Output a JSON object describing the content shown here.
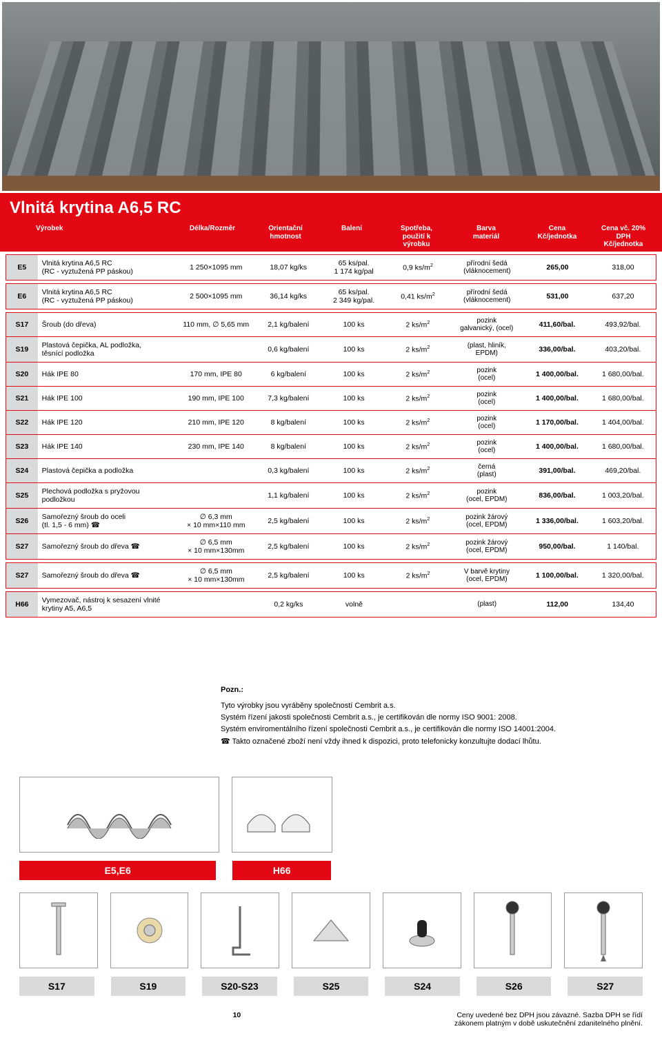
{
  "hero_alt": "Vlnitá vláknocementová krytina – šedé vlnovky",
  "title": "Vlnitá krytina A6,5 RC",
  "headers": {
    "c0": "",
    "c1": "Výrobek",
    "c2": "Délka/Rozměr",
    "c3": "Orientační\nhmotnost",
    "c4": "Balení",
    "c5": "Spotřeba,\npoužití k výrobku",
    "c6": "Barva\nmateriál",
    "c7": "Cena\nKč/jednotka",
    "c8": "Cena vč. 20% DPH\nKč/jednotka"
  },
  "block1": [
    {
      "code": "E5",
      "desc": "Vlnitá krytina A6,5 RC\n(RC - vyztužená PP páskou)",
      "dim": "1 250×1095 mm",
      "wt": "18,07 kg/ks",
      "pack": "65 ks/pal.\n1 174 kg/pal",
      "hm": "0,9 ks/m²",
      "mat": "přírodní šedá\n(vláknocement)",
      "p1": "265,00",
      "p2": "318,00"
    }
  ],
  "block2": [
    {
      "code": "E6",
      "desc": "Vlnitá krytina A6,5 RC\n(RC - vyztužená PP páskou)",
      "dim": "2 500×1095 mm",
      "wt": "36,14 kg/ks",
      "pack": "65 ks/pal.\n2 349 kg/pal.",
      "hm": "0,41 ks/m²",
      "mat": "přírodní šedá\n(vláknocement)",
      "p1": "531,00",
      "p2": "637,20"
    }
  ],
  "block3": [
    {
      "code": "S17",
      "desc": "Šroub (do dřeva)",
      "dim": "110 mm, ∅ 5,65 mm",
      "wt": "2,1 kg/balení",
      "pack": "100 ks",
      "hm": "2 ks/m²",
      "mat": "pozink\ngalvanický, (ocel)",
      "p1": "411,60/bal.",
      "p2": "493,92/bal."
    },
    {
      "code": "S19",
      "desc": "Plastová čepička, AL podložka,\ntěsnící podložka",
      "dim": "",
      "wt": "0,6 kg/balení",
      "pack": "100 ks",
      "hm": "2 ks/m²",
      "mat": "(plast, hliník,\nEPDM)",
      "p1": "336,00/bal.",
      "p2": "403,20/bal."
    },
    {
      "code": "S20",
      "desc": "Hák IPE 80",
      "dim": "170 mm, IPE 80",
      "wt": "6 kg/balení",
      "pack": "100 ks",
      "hm": "2 ks/m²",
      "mat": "pozink\n(ocel)",
      "p1": "1 400,00/bal.",
      "p2": "1 680,00/bal."
    },
    {
      "code": "S21",
      "desc": "Hák IPE 100",
      "dim": "190 mm, IPE 100",
      "wt": "7,3 kg/balení",
      "pack": "100 ks",
      "hm": "2 ks/m²",
      "mat": "pozink\n(ocel)",
      "p1": "1 400,00/bal.",
      "p2": "1 680,00/bal."
    },
    {
      "code": "S22",
      "desc": "Hák IPE 120",
      "dim": "210 mm, IPE 120",
      "wt": "8 kg/balení",
      "pack": "100 ks",
      "hm": "2 ks/m²",
      "mat": "pozink\n(ocel)",
      "p1": "1 170,00/bal.",
      "p2": "1 404,00/bal."
    },
    {
      "code": "S23",
      "desc": "Hák IPE 140",
      "dim": "230 mm, IPE 140",
      "wt": "8 kg/balení",
      "pack": "100 ks",
      "hm": "2 ks/m²",
      "mat": "pozink\n(ocel)",
      "p1": "1 400,00/bal.",
      "p2": "1 680,00/bal."
    },
    {
      "code": "S24",
      "desc": "Plastová čepička a podložka",
      "dim": "",
      "wt": "0,3 kg/balení",
      "pack": "100 ks",
      "hm": "2 ks/m²",
      "mat": "černá\n(plast)",
      "p1": "391,00/bal.",
      "p2": "469,20/bal."
    },
    {
      "code": "S25",
      "desc": "Plechová podložka s pryžovou\npodložkou",
      "dim": "",
      "wt": "1,1 kg/balení",
      "pack": "100 ks",
      "hm": "2 ks/m²",
      "mat": "pozink\n(ocel, EPDM)",
      "p1": "836,00/bal.",
      "p2": "1 003,20/bal."
    },
    {
      "code": "S26",
      "desc": "Samořezný šroub do oceli\n(tl. 1,5 - 6 mm)",
      "dim": "∅ 6,3 mm\n× 10 mm×110 mm",
      "wt": "2,5 kg/balení",
      "pack": "100 ks",
      "hm": "2 ks/m²",
      "mat": "pozink žárový\n(ocel, EPDM)",
      "p1": "1 336,00/bal.",
      "p2": "1 603,20/bal.",
      "phone": true
    },
    {
      "code": "S27",
      "desc": "Samořezný šroub do dřeva",
      "dim": "∅ 6,5 mm\n× 10 mm×130mm",
      "wt": "2,5 kg/balení",
      "pack": "100 ks",
      "hm": "2 ks/m²",
      "mat": "pozink žárový\n(ocel, EPDM)",
      "p1": "950,00/bal.",
      "p2": "1 140/bal.",
      "phone": true
    }
  ],
  "block4": [
    {
      "code": "S27",
      "desc": "Samořezný šroub do dřeva",
      "dim": "∅ 6,5 mm\n× 10 mm×130mm",
      "wt": "2,5 kg/balení",
      "pack": "100 ks",
      "hm": "2 ks/m²",
      "mat": "V barvě krytiny\n(ocel, EPDM)",
      "p1": "1 100,00/bal.",
      "p2": "1 320,00/bal.",
      "phone": true
    }
  ],
  "block5": [
    {
      "code": "H66",
      "desc": "Vymezovač, nástroj k sesazení vlnité\nkrytiny A5, A6,5",
      "dim": "",
      "wt": "0,2 kg/ks",
      "pack": "volně",
      "hm": "",
      "mat": "(plast)",
      "p1": "112,00",
      "p2": "134,40"
    }
  ],
  "notes": {
    "title": "Pozn.:",
    "lines": [
      "Tyto výrobky jsou vyráběny společností Cembrit a.s.",
      "Systém řízení jakosti společnosti Cembrit a.s., je certifikován dle normy ISO 9001: 2008.",
      "Systém enviromentálního řízení společnosti Cembrit a.s., je certifikován dle normy ISO 14001:2004.",
      "☎ Takto označené zboží není vždy ihned k dispozici, proto telefonicky konzultujte dodací lhůtu."
    ]
  },
  "chips_top": [
    {
      "label": "E5,E6",
      "cls": "red"
    },
    {
      "label": "H66",
      "cls": "red"
    }
  ],
  "chips_bottom": [
    {
      "label": "S17"
    },
    {
      "label": "S19"
    },
    {
      "label": "S20-S23"
    },
    {
      "label": "S25"
    },
    {
      "label": "S24"
    },
    {
      "label": "S26"
    },
    {
      "label": "S27"
    }
  ],
  "footer": {
    "page": "10",
    "right": "Ceny uvedené bez DPH jsou závazné. Sazba DPH se řídí\nzákonem platným v době uskutečnění zdanitelného plnění."
  },
  "colors": {
    "red": "#e30613",
    "grey": "#d9dadb"
  }
}
